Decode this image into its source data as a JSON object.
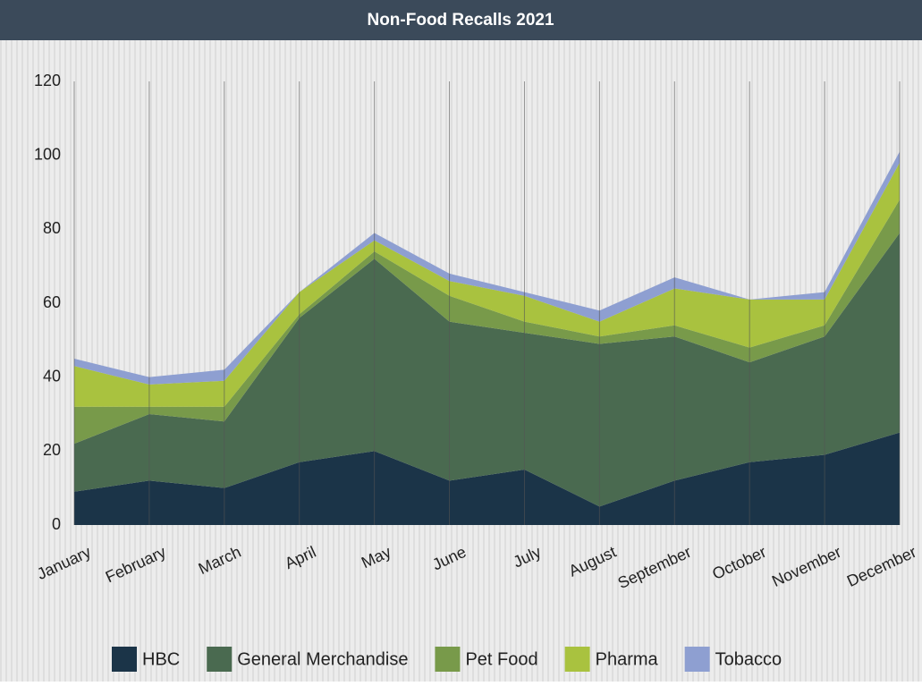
{
  "chart_data": {
    "type": "stacked_area",
    "title": "Non-Food Recalls 2021",
    "categories": [
      "January",
      "February",
      "March",
      "April",
      "May",
      "June",
      "July",
      "August",
      "September",
      "October",
      "November",
      "December"
    ],
    "series": [
      {
        "name": "HBC",
        "color": "#1b3448",
        "values": [
          9,
          12,
          10,
          17,
          20,
          12,
          15,
          5,
          12,
          17,
          19,
          25
        ]
      },
      {
        "name": "General Merchandise",
        "color": "#4a6a50",
        "values": [
          13,
          18,
          18,
          39,
          52,
          43,
          37,
          44,
          39,
          27,
          32,
          54
        ]
      },
      {
        "name": "Pet Food",
        "color": "#789a4a",
        "values": [
          10,
          2,
          4,
          1,
          2,
          7,
          3,
          2,
          3,
          4,
          3,
          9
        ]
      },
      {
        "name": "Pharma",
        "color": "#a9c23f",
        "values": [
          11,
          6,
          7,
          6,
          3,
          4,
          7,
          4,
          10,
          13,
          7,
          10
        ]
      },
      {
        "name": "Tobacco",
        "color": "#8e9fd1",
        "values": [
          2,
          2,
          3,
          0,
          2,
          2,
          1,
          3,
          3,
          0,
          2,
          3
        ]
      }
    ],
    "ylim": [
      0,
      120
    ],
    "yticks": [
      0,
      20,
      40,
      60,
      80,
      100,
      120
    ],
    "legend": "bottom"
  }
}
